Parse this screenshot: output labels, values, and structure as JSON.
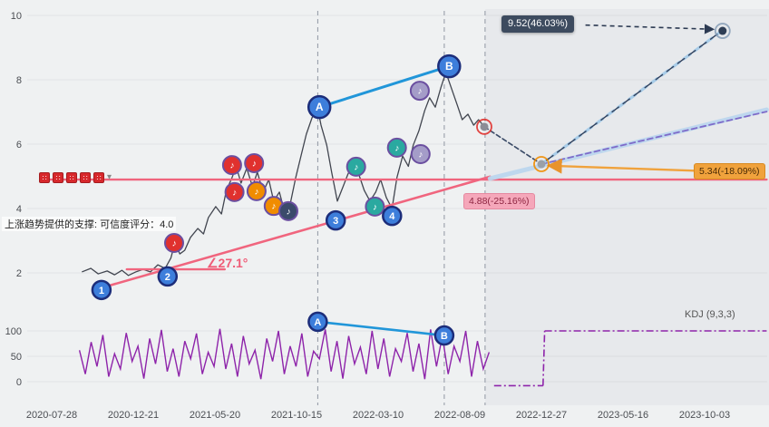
{
  "annotations": {
    "support_text": "上涨趋势提供的支撑: 可信度评分：4.0",
    "angle_text": "∠27.1°",
    "target_label": "9.52(46.03%)",
    "mid_label": "5.34(-18.09%)",
    "low_label": "4.88(-25.16%)",
    "kdj_label": "KDJ (9,3,3)"
  },
  "icons": {
    "signal_glyph": "∷",
    "collapsed_glyph": "▾",
    "note_glyph": "♪"
  },
  "colors": {
    "price_line": "#41454f",
    "pink": "#f0657e",
    "blue_ab": "#2196d9",
    "kdj_purple": "#8e24aa",
    "wave_circle_fill": "#3d7edb",
    "wave_circle_stroke": "#1c2d7a",
    "tooltip_dark": "#3d4b5f",
    "tooltip_orange": "#f0a23c",
    "tooltip_pink": "#f5a7ba"
  },
  "chart_data": [
    {
      "type": "line",
      "title": "price panel with Elliott wave annotations",
      "x_tick_labels": [
        "2020-07-28",
        "2020-12-21",
        "2021-05-20",
        "2021-10-15",
        "2022-03-10",
        "2022-08-09",
        "2022-12-27",
        "2023-05-16",
        "2023-10-03"
      ],
      "y_tick_values": [
        2,
        4,
        6,
        8,
        10
      ],
      "ylim": [
        0.7,
        10.3
      ],
      "legend_position": "none",
      "grid": "faint",
      "price_series": {
        "name": "price",
        "color": "#41454f",
        "points": [
          [
            0.37,
            2.03
          ],
          [
            0.48,
            2.14
          ],
          [
            0.57,
            1.97
          ],
          [
            0.68,
            2.06
          ],
          [
            0.77,
            1.94
          ],
          [
            0.86,
            2.08
          ],
          [
            0.94,
            1.92
          ],
          [
            1.03,
            2.03
          ],
          [
            1.12,
            2.11
          ],
          [
            1.21,
            2.03
          ],
          [
            1.3,
            2.25
          ],
          [
            1.39,
            2.14
          ],
          [
            1.46,
            2.46
          ],
          [
            1.51,
            2.93
          ],
          [
            1.57,
            2.59
          ],
          [
            1.63,
            2.7
          ],
          [
            1.7,
            3.1
          ],
          [
            1.79,
            3.38
          ],
          [
            1.86,
            3.21
          ],
          [
            1.92,
            3.72
          ],
          [
            2.01,
            4.06
          ],
          [
            2.08,
            3.83
          ],
          [
            2.14,
            4.56
          ],
          [
            2.21,
            4.96
          ],
          [
            2.26,
            5.31
          ],
          [
            2.32,
            4.79
          ],
          [
            2.39,
            5.25
          ],
          [
            2.46,
            4.68
          ],
          [
            2.52,
            5.13
          ],
          [
            2.59,
            4.51
          ],
          [
            2.66,
            4.9
          ],
          [
            2.72,
            4.23
          ],
          [
            2.79,
            4.51
          ],
          [
            2.86,
            3.83
          ],
          [
            2.92,
            4.11
          ],
          [
            2.99,
            4.96
          ],
          [
            3.06,
            5.69
          ],
          [
            3.12,
            6.31
          ],
          [
            3.19,
            6.82
          ],
          [
            3.26,
            7.1
          ],
          [
            3.3,
            6.59
          ],
          [
            3.37,
            5.97
          ],
          [
            3.43,
            5.13
          ],
          [
            3.5,
            4.23
          ],
          [
            3.57,
            4.68
          ],
          [
            3.63,
            5.07
          ],
          [
            3.7,
            5.41
          ],
          [
            3.77,
            5.01
          ],
          [
            3.83,
            4.56
          ],
          [
            3.9,
            4.23
          ],
          [
            3.97,
            4.51
          ],
          [
            4.03,
            4.9
          ],
          [
            4.1,
            4.34
          ],
          [
            4.17,
            4.0
          ],
          [
            4.23,
            4.96
          ],
          [
            4.3,
            5.63
          ],
          [
            4.37,
            5.31
          ],
          [
            4.43,
            5.97
          ],
          [
            4.5,
            6.42
          ],
          [
            4.57,
            7.04
          ],
          [
            4.63,
            7.44
          ],
          [
            4.7,
            7.15
          ],
          [
            4.77,
            7.77
          ],
          [
            4.83,
            8.23
          ],
          [
            4.9,
            7.72
          ],
          [
            4.97,
            7.21
          ],
          [
            5.03,
            6.76
          ],
          [
            5.1,
            6.93
          ],
          [
            5.17,
            6.59
          ],
          [
            5.23,
            6.76
          ],
          [
            5.3,
            6.54
          ]
        ]
      },
      "trend_lines": [
        {
          "name": "support-horizontal-line",
          "from": [
            -0.13,
            4.9
          ],
          "to": [
            8.76,
            4.9
          ],
          "color": "#f0657e",
          "width": 2.4
        },
        {
          "name": "uptrend-support-line",
          "from": [
            0.59,
            1.52
          ],
          "to": [
            5.37,
            4.99
          ],
          "color": "#f0657e",
          "width": 2.6
        },
        {
          "name": "angle-baseline",
          "from": [
            0.92,
            2.11
          ],
          "to": [
            2.12,
            2.11
          ],
          "color": "#f0657e",
          "width": 2.4
        },
        {
          "name": "ab-trend-line",
          "from": [
            3.28,
            7.15
          ],
          "to": [
            4.87,
            8.42
          ],
          "color": "#2196d9",
          "width": 3
        },
        {
          "name": "forecast-band",
          "from": [
            5.37,
            4.93
          ],
          "to": [
            8.76,
            7.07
          ],
          "color": "#bcd6ee",
          "width": 5,
          "opacity": 0.95
        },
        {
          "name": "forecast-purple-dashed",
          "from": [
            6.0,
            5.38
          ],
          "to": [
            8.76,
            7.01
          ],
          "color": "#7e6bc9",
          "width": 1.8,
          "dash": "6 4"
        },
        {
          "name": "drop-projection-dashed",
          "from": [
            5.3,
            6.54
          ],
          "to": [
            6.0,
            5.38
          ],
          "color": "#3a4a66",
          "width": 1.6,
          "dash": "5 3"
        },
        {
          "name": "target-projection-light",
          "from": [
            6.0,
            5.38
          ],
          "to": [
            8.2,
            9.5
          ],
          "color": "#a8cce8",
          "width": 3.2,
          "dash": "9 6"
        },
        {
          "name": "target-projection-dark",
          "from": [
            6.0,
            5.38
          ],
          "to": [
            8.2,
            9.5
          ],
          "color": "#31405c",
          "width": 1.4,
          "dash": "9 6",
          "offset": 8
        }
      ],
      "arrows": [
        {
          "name": "target-tooltip-arrow",
          "from": [
            6.54,
            9.7
          ],
          "to": [
            8.1,
            9.57
          ],
          "color": "#2c3a52",
          "width": 1.6,
          "dash": "5 4",
          "head": "navy"
        },
        {
          "name": "mid-tooltip-arrow",
          "from": [
            7.92,
            5.17
          ],
          "to": [
            6.1,
            5.33
          ],
          "color": "#f0a23c",
          "width": 2.4,
          "head": "orange"
        }
      ],
      "vlines": [
        3.26,
        4.81,
        5.31
      ],
      "region_split_x": 5.31,
      "note_markers": [
        {
          "x": 1.5,
          "p": 2.93,
          "color": "#e0312e"
        },
        {
          "x": 2.21,
          "p": 5.35,
          "color": "#e0312e"
        },
        {
          "x": 2.48,
          "p": 5.41,
          "color": "#e0312e"
        },
        {
          "x": 2.24,
          "p": 4.51,
          "color": "#e0312e"
        },
        {
          "x": 2.51,
          "p": 4.54,
          "color": "#f08c00"
        },
        {
          "x": 2.72,
          "p": 4.08,
          "color": "#f08c00"
        },
        {
          "x": 2.9,
          "p": 3.92,
          "color": "#3b4a6b"
        },
        {
          "x": 3.73,
          "p": 5.3,
          "color": "#2aa9a0"
        },
        {
          "x": 3.96,
          "p": 4.06,
          "color": "#2aa9a0"
        },
        {
          "x": 4.23,
          "p": 5.89,
          "color": "#2aa9a0"
        },
        {
          "x": 4.52,
          "p": 5.69,
          "color": "#a49cc8"
        },
        {
          "x": 4.51,
          "p": 7.66,
          "color": "#a49cc8"
        }
      ],
      "wave_labels": [
        {
          "text": "1",
          "x": 0.61,
          "p": 1.47,
          "r": 10
        },
        {
          "text": "2",
          "x": 1.42,
          "p": 1.89,
          "r": 10
        },
        {
          "text": "3",
          "x": 3.48,
          "p": 3.63,
          "r": 10
        },
        {
          "text": "4",
          "x": 4.17,
          "p": 3.77,
          "r": 10
        },
        {
          "text": "A",
          "x": 3.28,
          "p": 7.15,
          "r": 12
        },
        {
          "text": "B",
          "x": 4.87,
          "p": 8.42,
          "r": 12
        }
      ],
      "endpoint_dots": [
        {
          "x": 5.3,
          "p": 6.54,
          "fill": "#8c8c96",
          "ring": "#e0312e"
        },
        {
          "x": 6.0,
          "p": 5.38,
          "fill": "#9aa0a8",
          "ring": "#f08c00"
        },
        {
          "x": 8.22,
          "p": 9.52,
          "fill": "#2f3e55",
          "ring": "#8aa0b8"
        }
      ]
    },
    {
      "type": "line",
      "title": "KDJ (9,3,3)",
      "y_tick_values": [
        0,
        50,
        100
      ],
      "series": [
        {
          "name": "KDJ",
          "color": "#8e24aa",
          "x_range": [
            0.34,
            5.36
          ],
          "values": [
            62,
            15,
            78,
            30,
            92,
            10,
            55,
            25,
            96,
            40,
            70,
            6,
            85,
            35,
            102,
            20,
            65,
            10,
            80,
            45,
            95,
            15,
            58,
            30,
            104,
            25,
            75,
            10,
            90,
            35,
            62,
            5,
            85,
            40,
            100,
            15,
            70,
            30,
            95,
            10,
            60,
            45,
            103,
            20,
            80,
            6,
            90,
            35,
            68,
            15,
            100,
            25,
            85,
            10,
            65,
            40,
            96,
            20,
            75,
            5,
            103,
            30,
            90,
            15,
            70,
            40,
            100,
            10,
            80,
            25,
            58
          ]
        }
      ],
      "flat_segments": [
        {
          "from": [
            5.42,
            -8
          ],
          "to": [
            6.02,
            -8
          ]
        },
        {
          "from": [
            6.02,
            -8
          ],
          "to": [
            6.04,
            100
          ]
        },
        {
          "from": [
            6.04,
            100
          ],
          "to": [
            8.76,
            100
          ]
        }
      ],
      "ab_line": {
        "from": [
          3.26,
          118
        ],
        "to": [
          4.81,
          91
        ],
        "color": "#2196d9"
      },
      "wave_labels": [
        {
          "text": "A",
          "x": 3.26,
          "v": 118,
          "r": 10
        },
        {
          "text": "B",
          "x": 4.81,
          "v": 91,
          "r": 10
        }
      ]
    }
  ]
}
